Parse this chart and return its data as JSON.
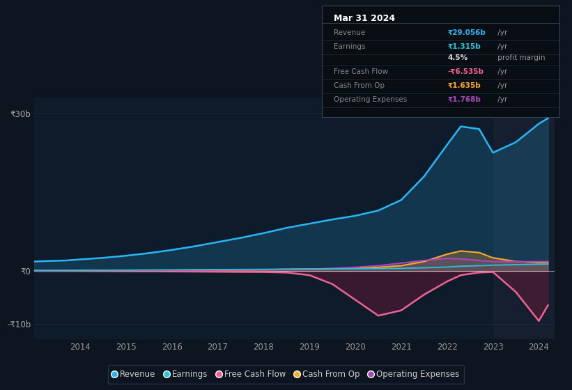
{
  "bg_color": "#0d1520",
  "plot_bg_color": "#0d1b2a",
  "years": [
    2013.0,
    2013.3,
    2013.7,
    2014.0,
    2014.5,
    2015.0,
    2015.5,
    2016.0,
    2016.5,
    2017.0,
    2017.5,
    2018.0,
    2018.5,
    2019.0,
    2019.5,
    2020.0,
    2020.5,
    2021.0,
    2021.5,
    2022.0,
    2022.3,
    2022.7,
    2023.0,
    2023.5,
    2024.0,
    2024.2
  ],
  "revenue": [
    1.8,
    1.9,
    2.0,
    2.2,
    2.5,
    2.9,
    3.4,
    4.0,
    4.7,
    5.5,
    6.3,
    7.2,
    8.2,
    9.0,
    9.8,
    10.5,
    11.5,
    13.5,
    18.0,
    24.0,
    27.5,
    27.0,
    22.5,
    24.5,
    28.0,
    29.056
  ],
  "earnings": [
    0.1,
    0.1,
    0.12,
    0.13,
    0.15,
    0.17,
    0.2,
    0.22,
    0.25,
    0.28,
    0.3,
    0.32,
    0.35,
    0.38,
    0.4,
    0.42,
    0.45,
    0.5,
    0.6,
    0.75,
    0.9,
    1.0,
    1.1,
    1.2,
    1.28,
    1.315
  ],
  "free_cash_flow": [
    0.0,
    0.0,
    -0.02,
    -0.03,
    -0.05,
    -0.07,
    -0.08,
    -0.1,
    -0.12,
    -0.15,
    -0.18,
    -0.2,
    -0.3,
    -0.8,
    -2.5,
    -5.5,
    -8.5,
    -7.5,
    -4.5,
    -2.0,
    -0.8,
    -0.3,
    -0.2,
    -4.0,
    -9.5,
    -6.535
  ],
  "cash_from_op": [
    0.03,
    0.03,
    0.04,
    0.05,
    0.06,
    0.08,
    0.1,
    0.12,
    0.15,
    0.18,
    0.2,
    0.25,
    0.3,
    0.35,
    0.4,
    0.5,
    0.7,
    1.0,
    1.8,
    3.2,
    3.8,
    3.5,
    2.5,
    1.8,
    1.6,
    1.635
  ],
  "operating_expenses": [
    0.05,
    0.05,
    0.06,
    0.07,
    0.08,
    0.1,
    0.12,
    0.15,
    0.17,
    0.2,
    0.22,
    0.25,
    0.28,
    0.32,
    0.5,
    0.7,
    1.0,
    1.5,
    2.0,
    2.4,
    2.3,
    2.0,
    1.8,
    1.75,
    1.77,
    1.768
  ],
  "x_ticks": [
    2014,
    2015,
    2016,
    2017,
    2018,
    2019,
    2020,
    2021,
    2022,
    2023,
    2024
  ],
  "y_ticks": [
    -10,
    0,
    30
  ],
  "y_labels": [
    "-₹10b",
    "₹0",
    "₹30b"
  ],
  "ylim": [
    -13,
    33
  ],
  "xlim": [
    2013.0,
    2024.35
  ],
  "line_colors": {
    "revenue": "#29b6f6",
    "earnings": "#26c6da",
    "free_cash_flow": "#f06292",
    "cash_from_op": "#ffa726",
    "operating_expenses": "#ab47bc"
  },
  "fill_alphas": {
    "revenue": 0.18,
    "free_cash_flow": 0.4,
    "cash_from_op": 0.25,
    "operating_expenses": 0.2
  },
  "legend_items": [
    {
      "label": "Revenue",
      "color": "#29b6f6"
    },
    {
      "label": "Earnings",
      "color": "#26c6da"
    },
    {
      "label": "Free Cash Flow",
      "color": "#f06292"
    },
    {
      "label": "Cash From Op",
      "color": "#ffa726"
    },
    {
      "label": "Operating Expenses",
      "color": "#ab47bc"
    }
  ],
  "tooltip": {
    "title": "Mar 31 2024",
    "rows": [
      {
        "label": "Revenue",
        "value": "₹29.056b",
        "unit": " /yr",
        "color": "#29b6f6"
      },
      {
        "label": "Earnings",
        "value": "₹1.315b",
        "unit": " /yr",
        "color": "#26c6da"
      },
      {
        "label": "",
        "value": "4.5%",
        "unit": " profit margin",
        "color": "#dddddd"
      },
      {
        "label": "Free Cash Flow",
        "value": "-₹6.535b",
        "unit": " /yr",
        "color": "#f06292"
      },
      {
        "label": "Cash From Op",
        "value": "₹1.635b",
        "unit": " /yr",
        "color": "#ffa726"
      },
      {
        "label": "Operating Expenses",
        "value": "₹1.768b",
        "unit": " /yr",
        "color": "#ab47bc"
      }
    ]
  }
}
